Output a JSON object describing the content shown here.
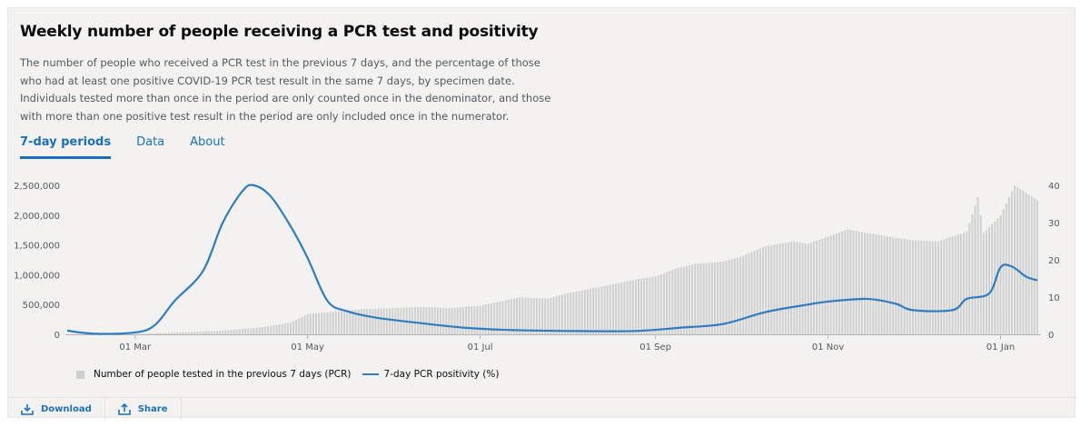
{
  "title": "Weekly number of people receiving a PCR test and positivity",
  "description": "The number of people who received a PCR test in the previous 7 days, and the percentage of those who had at least one positive COVID-19 PCR test result in the same 7 days, by specimen date. Individuals tested more than once in the period are only counted once in the denominator, and those with more than one positive test result in the period are only included once in the numerator.",
  "tabs": [
    {
      "label": "7-day periods",
      "active": true
    },
    {
      "label": "Data",
      "active": false
    },
    {
      "label": "About",
      "active": false
    }
  ],
  "footer": {
    "download_label": "Download",
    "share_label": "Share"
  },
  "colors": {
    "bar": "#cfcfcf",
    "line": "#2f7dc0",
    "link": "#1d70b8"
  },
  "icons": {
    "download": "download-icon",
    "share": "share-icon"
  },
  "chart_data": {
    "type": "bar",
    "x_range": [
      "2020-02-06",
      "2021-01-14"
    ],
    "x_ticks": [
      {
        "date": "2020-03-01",
        "label": "01 Mar"
      },
      {
        "date": "2020-05-01",
        "label": "01 May"
      },
      {
        "date": "2020-07-01",
        "label": "01 Jul"
      },
      {
        "date": "2020-09-01",
        "label": "01 Sep"
      },
      {
        "date": "2020-11-01",
        "label": "01 Nov"
      },
      {
        "date": "2021-01-01",
        "label": "01 Jan"
      }
    ],
    "y_left": {
      "min": 0,
      "max": 2500000,
      "ticks": [
        0,
        500000,
        1000000,
        1500000,
        2000000,
        2500000
      ],
      "tick_labels": [
        "0",
        "500,000",
        "1,000,000",
        "1,500,000",
        "2,000,000",
        "2,500,000"
      ]
    },
    "y_right": {
      "min": 0,
      "max": 40,
      "ticks": [
        0,
        10,
        20,
        30,
        40
      ],
      "tick_labels": [
        "0",
        "10",
        "20",
        "30",
        "40"
      ]
    },
    "grid": false,
    "legend_position": "bottom-left",
    "series": [
      {
        "name": "Number of people tested in the previous 7 days (PCR)",
        "type": "bar",
        "axis": "left",
        "points": [
          [
            "2020-02-06",
            0
          ],
          [
            "2020-03-01",
            5000
          ],
          [
            "2020-03-15",
            30000
          ],
          [
            "2020-04-01",
            60000
          ],
          [
            "2020-04-15",
            120000
          ],
          [
            "2020-04-25",
            200000
          ],
          [
            "2020-05-01",
            340000
          ],
          [
            "2020-05-10",
            380000
          ],
          [
            "2020-05-20",
            420000
          ],
          [
            "2020-06-01",
            440000
          ],
          [
            "2020-06-10",
            460000
          ],
          [
            "2020-06-20",
            440000
          ],
          [
            "2020-07-01",
            480000
          ],
          [
            "2020-07-15",
            620000
          ],
          [
            "2020-07-25",
            600000
          ],
          [
            "2020-08-01",
            690000
          ],
          [
            "2020-08-15",
            820000
          ],
          [
            "2020-08-25",
            920000
          ],
          [
            "2020-09-01",
            970000
          ],
          [
            "2020-09-08",
            1100000
          ],
          [
            "2020-09-15",
            1180000
          ],
          [
            "2020-09-25",
            1220000
          ],
          [
            "2020-10-01",
            1300000
          ],
          [
            "2020-10-10",
            1480000
          ],
          [
            "2020-10-20",
            1560000
          ],
          [
            "2020-10-25",
            1520000
          ],
          [
            "2020-11-01",
            1640000
          ],
          [
            "2020-11-08",
            1760000
          ],
          [
            "2020-11-15",
            1700000
          ],
          [
            "2020-11-25",
            1620000
          ],
          [
            "2020-12-01",
            1580000
          ],
          [
            "2020-12-10",
            1560000
          ],
          [
            "2020-12-20",
            1720000
          ],
          [
            "2020-12-24",
            2300000
          ],
          [
            "2020-12-26",
            1700000
          ],
          [
            "2021-01-01",
            2000000
          ],
          [
            "2021-01-06",
            2500000
          ],
          [
            "2021-01-14",
            2250000
          ]
        ]
      },
      {
        "name": "7-day PCR positivity (%)",
        "type": "line",
        "axis": "right",
        "points": [
          [
            "2020-02-06",
            1.0
          ],
          [
            "2020-02-15",
            0.2
          ],
          [
            "2020-03-01",
            0.5
          ],
          [
            "2020-03-08",
            2.5
          ],
          [
            "2020-03-15",
            9.0
          ],
          [
            "2020-03-25",
            17.0
          ],
          [
            "2020-04-01",
            30.0
          ],
          [
            "2020-04-08",
            38.5
          ],
          [
            "2020-04-12",
            40.0
          ],
          [
            "2020-04-18",
            37.0
          ],
          [
            "2020-04-25",
            29.0
          ],
          [
            "2020-05-01",
            20.5
          ],
          [
            "2020-05-08",
            9.0
          ],
          [
            "2020-05-15",
            6.2
          ],
          [
            "2020-05-25",
            4.5
          ],
          [
            "2020-06-10",
            3.0
          ],
          [
            "2020-06-25",
            1.8
          ],
          [
            "2020-07-10",
            1.2
          ],
          [
            "2020-08-01",
            0.9
          ],
          [
            "2020-08-25",
            0.9
          ],
          [
            "2020-09-10",
            1.8
          ],
          [
            "2020-09-25",
            2.8
          ],
          [
            "2020-10-10",
            6.0
          ],
          [
            "2020-10-25",
            8.0
          ],
          [
            "2020-11-01",
            8.8
          ],
          [
            "2020-11-15",
            9.5
          ],
          [
            "2020-11-25",
            8.2
          ],
          [
            "2020-12-01",
            6.5
          ],
          [
            "2020-12-15",
            6.5
          ],
          [
            "2020-12-20",
            9.5
          ],
          [
            "2020-12-28",
            11.0
          ],
          [
            "2021-01-01",
            18.0
          ],
          [
            "2021-01-05",
            18.2
          ],
          [
            "2021-01-10",
            15.5
          ],
          [
            "2021-01-14",
            14.5
          ]
        ]
      }
    ]
  }
}
